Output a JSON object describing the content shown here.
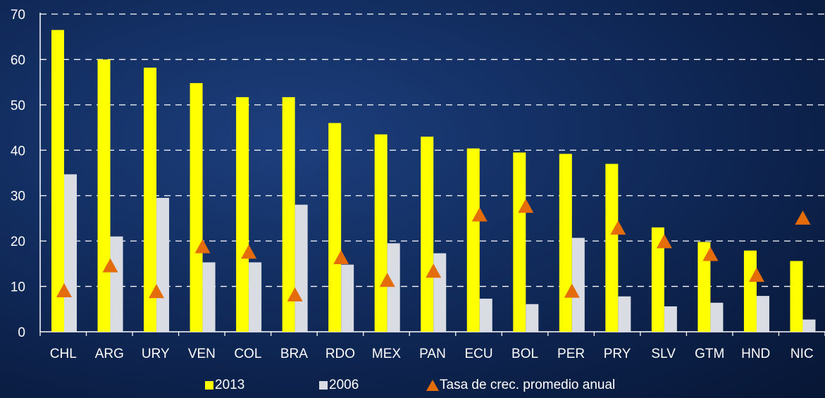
{
  "chart_data": {
    "type": "bar",
    "categories": [
      "CHL",
      "ARG",
      "URY",
      "VEN",
      "COL",
      "BRA",
      "RDO",
      "MEX",
      "PAN",
      "ECU",
      "BOL",
      "PER",
      "PRY",
      "SLV",
      "GTM",
      "HND",
      "NIC"
    ],
    "series": [
      {
        "name": "2013",
        "kind": "bar",
        "color": "#ffff00",
        "values": [
          66.5,
          60,
          58.2,
          54.8,
          51.7,
          51.7,
          46,
          43.5,
          43,
          40.4,
          39.5,
          39.2,
          37,
          23,
          19.8,
          17.9,
          15.6
        ]
      },
      {
        "name": "2006",
        "kind": "bar",
        "color": "#d9dde3",
        "values": [
          34.7,
          21,
          29.5,
          15.3,
          15.3,
          28,
          14.8,
          19.5,
          17.3,
          7.3,
          6.1,
          20.7,
          7.8,
          5.6,
          6.4,
          7.9,
          2.7
        ]
      },
      {
        "name": "Tasa de crec. promedio anual",
        "kind": "marker",
        "color": "#e46c0a",
        "values": [
          9,
          14.5,
          8.8,
          18.7,
          17.5,
          8.1,
          16.3,
          11.3,
          13.3,
          25.7,
          27.6,
          8.9,
          22.8,
          19.8,
          17,
          12.4,
          25
        ]
      }
    ],
    "y_ticks": [
      "0",
      "10",
      "20",
      "30",
      "40",
      "50",
      "60",
      "70"
    ],
    "ylim": [
      0,
      70
    ],
    "grid": true,
    "legend_position": "bottom"
  }
}
